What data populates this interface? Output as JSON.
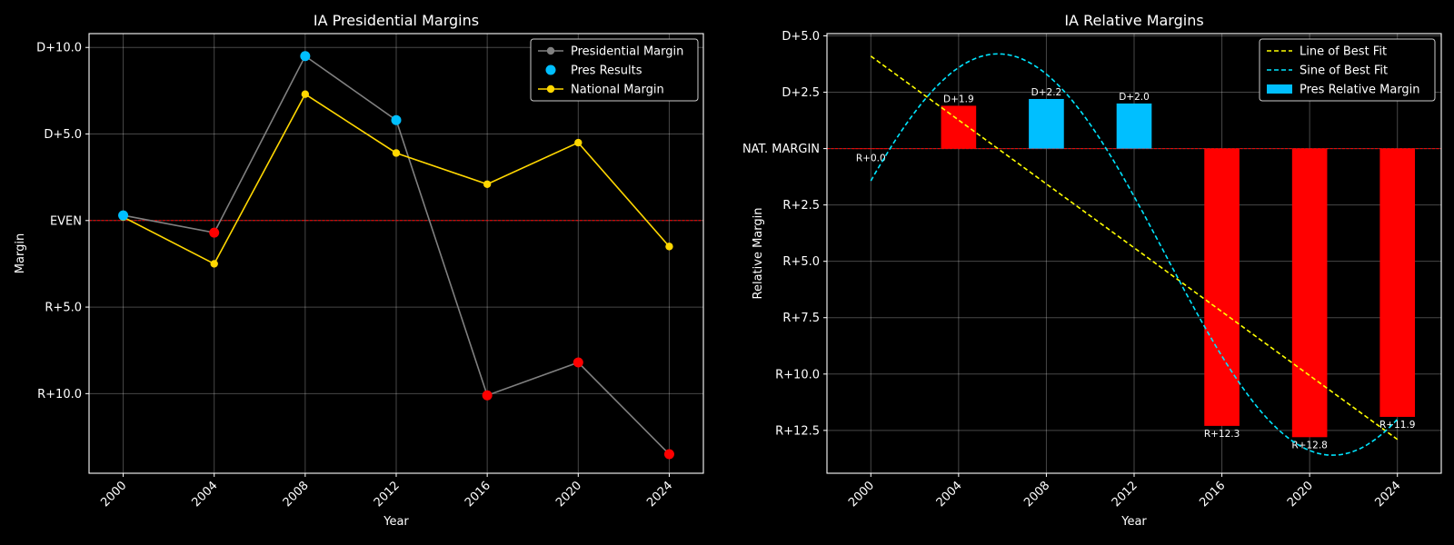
{
  "chart_data": [
    {
      "type": "line",
      "title": "IA Presidential Margins",
      "xlabel": "Year",
      "ylabel": "Margin",
      "x": [
        2000,
        2004,
        2008,
        2012,
        2016,
        2020,
        2024
      ],
      "xlim": [
        1998.5,
        2025.5
      ],
      "ylim": [
        -14.6,
        10.8
      ],
      "yticks": [
        {
          "value": 10,
          "label": "D+10.0"
        },
        {
          "value": 5,
          "label": "D+5.0"
        },
        {
          "value": 0,
          "label": "EVEN"
        },
        {
          "value": -5,
          "label": "R+5.0"
        },
        {
          "value": -10,
          "label": "R+10.0"
        }
      ],
      "grid": true,
      "legend_position": "top-right",
      "reference_line": {
        "value": 0,
        "color": "#ff0000"
      },
      "series": [
        {
          "name": "Presidential Margin",
          "values": [
            0.3,
            -0.7,
            9.5,
            5.8,
            -10.1,
            -8.2,
            -13.5
          ],
          "color": "#808080"
        },
        {
          "name": "Pres Results",
          "values": [
            0.3,
            -0.7,
            9.5,
            5.8,
            -10.1,
            -8.2,
            -13.5
          ],
          "colors": [
            "#00bfff",
            "#ff0000",
            "#00bfff",
            "#00bfff",
            "#ff0000",
            "#ff0000",
            "#ff0000"
          ]
        },
        {
          "name": "National Margin",
          "values": [
            0.2,
            -2.5,
            7.3,
            3.9,
            2.1,
            4.5,
            -1.5
          ],
          "color": "#ffd700"
        }
      ]
    },
    {
      "type": "bar",
      "title": "IA Relative Margins",
      "xlabel": "Year",
      "ylabel": "Relative Margin",
      "x": [
        2000,
        2004,
        2008,
        2012,
        2016,
        2020,
        2024
      ],
      "values": [
        0.0,
        1.9,
        2.2,
        2.0,
        -12.3,
        -12.8,
        -11.9
      ],
      "value_labels": [
        "R+0.0",
        "D+1.9",
        "D+2.2",
        "D+2.0",
        "R+12.3",
        "R+12.8",
        "R+11.9"
      ],
      "bar_colors": [
        "#ff0000",
        "#ff0000",
        "#00bfff",
        "#00bfff",
        "#ff0000",
        "#ff0000",
        "#ff0000"
      ],
      "xlim": [
        1998.0,
        2026.0
      ],
      "ylim": [
        -14.4,
        5.1
      ],
      "yticks": [
        {
          "value": 5,
          "label": "D+5.0"
        },
        {
          "value": 2.5,
          "label": "D+2.5"
        },
        {
          "value": 0,
          "label": "NAT. MARGIN"
        },
        {
          "value": -2.5,
          "label": "R+2.5"
        },
        {
          "value": -5,
          "label": "R+5.0"
        },
        {
          "value": -7.5,
          "label": "R+7.5"
        },
        {
          "value": -10,
          "label": "R+10.0"
        },
        {
          "value": -12.5,
          "label": "R+12.5"
        }
      ],
      "grid": true,
      "legend_position": "top-right",
      "reference_line": {
        "value": 0,
        "color": "#ff0000"
      },
      "series": [
        {
          "name": "Line of Best Fit",
          "style": "dashed",
          "color": "#ffff00",
          "x": [
            2000,
            2024
          ],
          "values": [
            4.1,
            -12.9
          ]
        },
        {
          "name": "Sine of Best Fit",
          "style": "dashed",
          "color": "#00e5ff",
          "offset": -4.7,
          "amplitude": 8.9,
          "period": 30.5,
          "peak_year": 2005.8
        }
      ],
      "bar_series_name": "Pres Relative Margin",
      "bar_legend_color": "#00bfff"
    }
  ]
}
